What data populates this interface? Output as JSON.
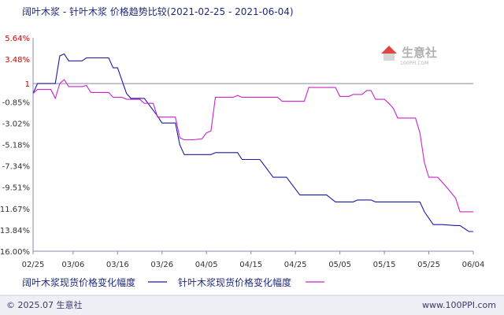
{
  "title": "阔叶木浆 - 针叶木浆 价格趋势比较(2021-02-25 - 2021-06-04)",
  "watermark": {
    "text": "生意社",
    "sub": "100PPI.COM"
  },
  "footer": {
    "left": "© 2025.07 生意社",
    "right": "www.100PPI.com"
  },
  "chart_data": {
    "type": "line",
    "title": "阔叶木浆 - 针叶木浆 价格趋势比较(2021-02-25 - 2021-06-04)",
    "xlabel": "",
    "ylabel": "",
    "x_ticks": [
      "02/25",
      "03/06",
      "03/16",
      "03/26",
      "04/05",
      "04/15",
      "04/25",
      "05/05",
      "05/15",
      "05/25",
      "06/04"
    ],
    "y_ticks": [
      5.64,
      3.48,
      1,
      -0.85,
      -3.02,
      -5.18,
      -7.34,
      -9.51,
      -11.67,
      -13.84,
      -16.0
    ],
    "y_tick_labels": [
      "5.64%",
      "3.48%",
      "1",
      "-0.85%",
      "-3.02%",
      "-5.18%",
      "-7.34%",
      "-9.51%",
      "-11.67%",
      "-13.84%",
      "-16.00%"
    ],
    "ylim": [
      -16.0,
      5.64
    ],
    "xlim": [
      "02/25",
      "06/04"
    ],
    "grid": false,
    "reference_line": 1,
    "legend_position": "bottom",
    "series": [
      {
        "name": "阔叶木浆现货价格变化幅度",
        "color": "#1a1aa8",
        "points": [
          [
            "02/25",
            0
          ],
          [
            "02/26",
            1
          ],
          [
            "03/02",
            1
          ],
          [
            "03/03",
            3.8
          ],
          [
            "03/04",
            4.0
          ],
          [
            "03/05",
            3.3
          ],
          [
            "03/08",
            3.3
          ],
          [
            "03/09",
            3.6
          ],
          [
            "03/14",
            3.6
          ],
          [
            "03/15",
            2.6
          ],
          [
            "03/16",
            2.6
          ],
          [
            "03/18",
            0.0
          ],
          [
            "03/19",
            -0.5
          ],
          [
            "03/22",
            -0.5
          ],
          [
            "03/25",
            -2.3
          ],
          [
            "03/26",
            -3.0
          ],
          [
            "03/29",
            -3.0
          ],
          [
            "03/30",
            -5.2
          ],
          [
            "03/31",
            -6.2
          ],
          [
            "04/06",
            -6.2
          ],
          [
            "04/07",
            -6.0
          ],
          [
            "04/12",
            -6.0
          ],
          [
            "04/13",
            -6.7
          ],
          [
            "04/17",
            -6.7
          ],
          [
            "04/20",
            -8.5
          ],
          [
            "04/23",
            -8.5
          ],
          [
            "04/26",
            -10.3
          ],
          [
            "05/02",
            -10.3
          ],
          [
            "05/04",
            -11.0
          ],
          [
            "05/08",
            -11.0
          ],
          [
            "05/09",
            -10.8
          ],
          [
            "05/12",
            -10.8
          ],
          [
            "05/13",
            -11.0
          ],
          [
            "05/23",
            -11.0
          ],
          [
            "05/24",
            -12.0
          ],
          [
            "05/26",
            -13.3
          ],
          [
            "05/28",
            -13.3
          ],
          [
            "05/31",
            -13.4
          ],
          [
            "06/01",
            -13.4
          ],
          [
            "06/03",
            -14.0
          ],
          [
            "06/04",
            -14.0
          ]
        ]
      },
      {
        "name": "针叶木浆现货价格变化幅度",
        "color": "#cc22cc",
        "points": [
          [
            "02/25",
            0
          ],
          [
            "02/26",
            0.4
          ],
          [
            "03/01",
            0.4
          ],
          [
            "03/02",
            -0.5
          ],
          [
            "03/03",
            1.0
          ],
          [
            "03/04",
            1.4
          ],
          [
            "03/05",
            0.7
          ],
          [
            "03/08",
            0.7
          ],
          [
            "03/09",
            0.8
          ],
          [
            "03/10",
            0.1
          ],
          [
            "03/14",
            0.1
          ],
          [
            "03/15",
            -0.4
          ],
          [
            "03/17",
            -0.4
          ],
          [
            "03/18",
            -0.6
          ],
          [
            "03/21",
            -0.6
          ],
          [
            "03/22",
            -1.0
          ],
          [
            "03/24",
            -1.0
          ],
          [
            "03/25",
            -2.4
          ],
          [
            "03/29",
            -2.4
          ],
          [
            "03/30",
            -4.5
          ],
          [
            "03/31",
            -4.7
          ],
          [
            "04/02",
            -4.7
          ],
          [
            "04/04",
            -4.6
          ],
          [
            "04/05",
            -4.0
          ],
          [
            "04/06",
            -3.8
          ],
          [
            "04/07",
            -0.4
          ],
          [
            "04/11",
            -0.4
          ],
          [
            "04/12",
            -0.2
          ],
          [
            "04/13",
            -0.4
          ],
          [
            "04/21",
            -0.4
          ],
          [
            "04/22",
            -0.8
          ],
          [
            "04/27",
            -0.8
          ],
          [
            "04/28",
            0.6
          ],
          [
            "05/04",
            0.6
          ],
          [
            "05/05",
            -0.3
          ],
          [
            "05/07",
            -0.3
          ],
          [
            "05/08",
            -0.1
          ],
          [
            "05/10",
            -0.1
          ],
          [
            "05/11",
            0.3
          ],
          [
            "05/12",
            0.3
          ],
          [
            "05/13",
            -0.6
          ],
          [
            "05/15",
            -0.6
          ],
          [
            "05/16",
            -1.0
          ],
          [
            "05/17",
            -1.5
          ],
          [
            "05/18",
            -2.5
          ],
          [
            "05/22",
            -2.5
          ],
          [
            "05/23",
            -4.0
          ],
          [
            "05/24",
            -7.0
          ],
          [
            "05/25",
            -8.5
          ],
          [
            "05/27",
            -8.5
          ],
          [
            "05/29",
            -9.5
          ],
          [
            "05/31",
            -10.6
          ],
          [
            "06/01",
            -12.0
          ],
          [
            "06/04",
            -12.0
          ]
        ]
      }
    ]
  }
}
